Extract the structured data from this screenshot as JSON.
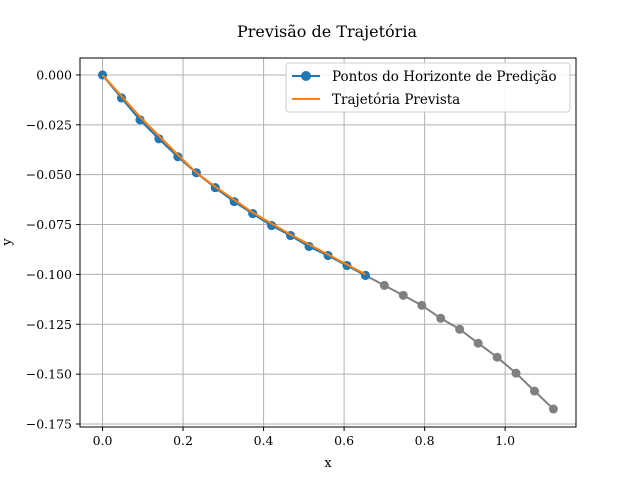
{
  "chart_data": {
    "type": "line",
    "title": "Previsão de Trajetória",
    "xlabel": "x",
    "ylabel": "y",
    "xlim": [
      -0.056,
      1.176
    ],
    "ylim": [
      -0.1765,
      0.0085
    ],
    "xticks": [
      0.0,
      0.2,
      0.4,
      0.6,
      0.8,
      1.0
    ],
    "xtick_labels": [
      "0.0",
      "0.2",
      "0.4",
      "0.6",
      "0.8",
      "1.0"
    ],
    "yticks": [
      0.0,
      -0.025,
      -0.05,
      -0.075,
      -0.1,
      -0.125,
      -0.15,
      -0.175
    ],
    "ytick_labels": [
      "0.000",
      "−0.025",
      "−0.050",
      "−0.075",
      "−0.100",
      "−0.125",
      "−0.150",
      "−0.175"
    ],
    "grid": true,
    "legend_position": "top-right",
    "series": [
      {
        "name": "",
        "color": "#808080",
        "style": "line-markers",
        "x": [
          0.0,
          0.047,
          0.093,
          0.14,
          0.187,
          0.233,
          0.28,
          0.327,
          0.373,
          0.42,
          0.467,
          0.513,
          0.56,
          0.607,
          0.653,
          0.7,
          0.747,
          0.793,
          0.84,
          0.887,
          0.933,
          0.98,
          1.027,
          1.073,
          1.12
        ],
        "y": [
          0.0,
          -0.0115,
          -0.0225,
          -0.032,
          -0.041,
          -0.049,
          -0.0565,
          -0.0635,
          -0.0695,
          -0.0755,
          -0.0805,
          -0.086,
          -0.0905,
          -0.0955,
          -0.1005,
          -0.1055,
          -0.1105,
          -0.1155,
          -0.122,
          -0.1275,
          -0.1345,
          -0.1415,
          -0.1495,
          -0.1585,
          -0.1675
        ]
      },
      {
        "name": "Pontos do Horizonte de Predição",
        "color": "#1f77b4",
        "style": "line-markers",
        "x": [
          0.0,
          0.047,
          0.093,
          0.14,
          0.187,
          0.233,
          0.28,
          0.327,
          0.373,
          0.42,
          0.467,
          0.513,
          0.56,
          0.607,
          0.653
        ],
        "y": [
          0.0,
          -0.0115,
          -0.0225,
          -0.032,
          -0.041,
          -0.049,
          -0.0565,
          -0.0635,
          -0.0695,
          -0.0755,
          -0.0805,
          -0.086,
          -0.0905,
          -0.0955,
          -0.1005
        ]
      },
      {
        "name": "Trajetória Prevista",
        "color": "#ff7f0e",
        "style": "line",
        "x": [
          0.0,
          0.093,
          0.187,
          0.233,
          0.28,
          0.373,
          0.467,
          0.56,
          0.653
        ],
        "y": [
          0.0,
          -0.021,
          -0.04,
          -0.049,
          -0.056,
          -0.069,
          -0.08,
          -0.09,
          -0.1
        ]
      }
    ],
    "legend": [
      {
        "label": "Pontos do Horizonte de Predição",
        "color": "#1f77b4",
        "marker": true
      },
      {
        "label": "Trajetória Prevista",
        "color": "#ff7f0e",
        "marker": false
      }
    ]
  }
}
